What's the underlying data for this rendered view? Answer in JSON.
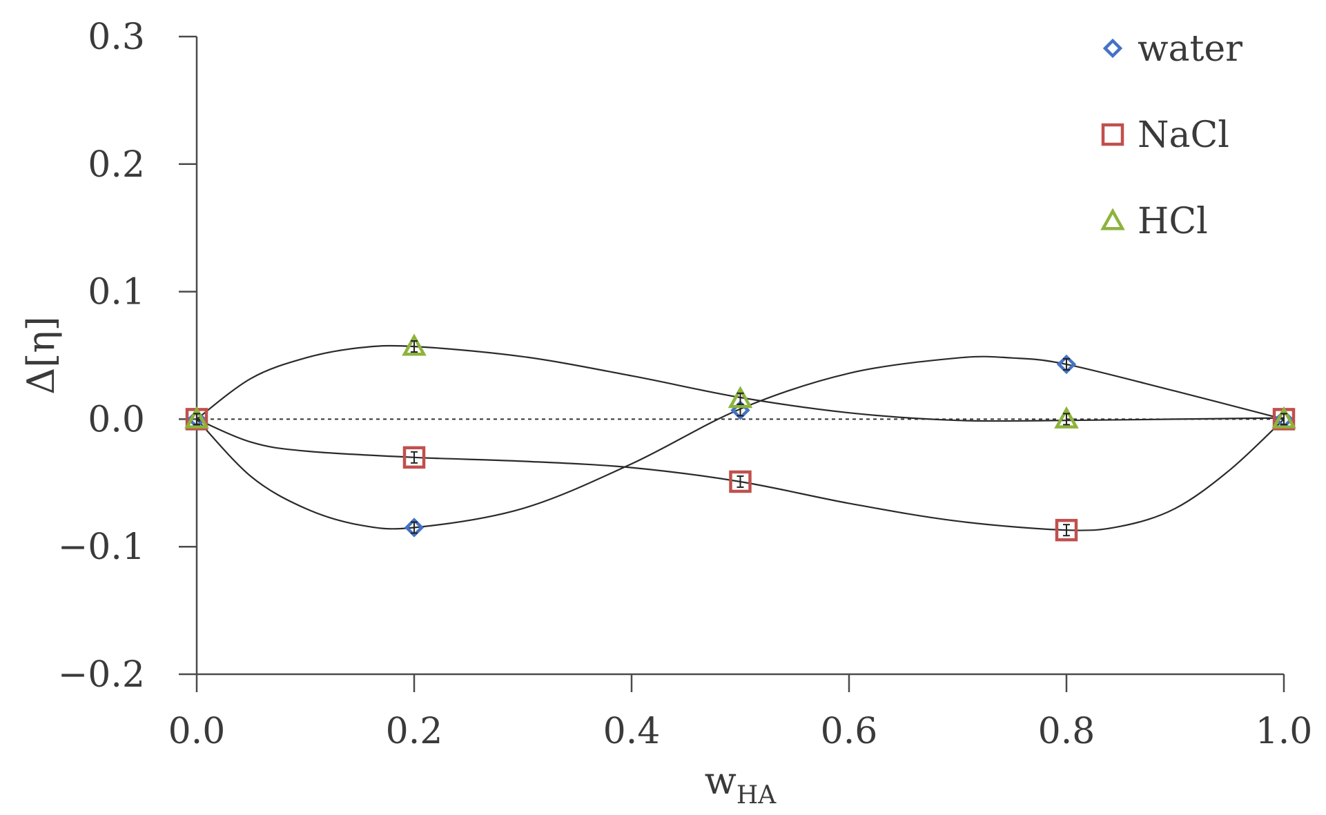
{
  "chart_data": {
    "type": "scatter",
    "title": "",
    "xlabel_main": "w",
    "xlabel_sub": "HA",
    "ylabel": "Δ[η]",
    "xlim": [
      0,
      1
    ],
    "ylim": [
      -0.2,
      0.3
    ],
    "x_ticks": [
      "0.0",
      "0.2",
      "0.4",
      "0.6",
      "0.8",
      "1.0"
    ],
    "y_ticks": [
      "0.3",
      "0.2",
      "0.1",
      "0.0",
      "−0.1",
      "−0.2"
    ],
    "x_tick_values": [
      0,
      0.2,
      0.4,
      0.6,
      0.8,
      1.0
    ],
    "y_tick_values": [
      0.3,
      0.2,
      0.1,
      0.0,
      -0.1,
      -0.2
    ],
    "reference_line": 0,
    "legend_position": "top-right",
    "series": [
      {
        "name": "water",
        "marker": "diamond",
        "color": "#4472C4",
        "x": [
          0.0,
          0.2,
          0.5,
          0.8,
          1.0
        ],
        "y": [
          0.0,
          -0.085,
          0.007,
          0.043,
          0.0
        ],
        "fit_x": [
          0.0,
          0.05,
          0.1,
          0.15,
          0.2,
          0.3,
          0.4,
          0.5,
          0.6,
          0.7,
          0.75,
          0.8,
          0.9,
          1.0
        ],
        "fit_y": [
          0.0,
          -0.045,
          -0.07,
          -0.083,
          -0.085,
          -0.07,
          -0.035,
          0.008,
          0.036,
          0.048,
          0.048,
          0.043,
          0.022,
          0.0
        ]
      },
      {
        "name": "NaCl",
        "marker": "square",
        "color": "#C0504D",
        "x": [
          0.0,
          0.2,
          0.5,
          0.8,
          1.0
        ],
        "y": [
          0.0,
          -0.03,
          -0.049,
          -0.087,
          0.0
        ],
        "fit_x": [
          0.0,
          0.05,
          0.1,
          0.2,
          0.3,
          0.4,
          0.5,
          0.6,
          0.7,
          0.8,
          0.85,
          0.9,
          0.95,
          1.0
        ],
        "fit_y": [
          0.0,
          -0.018,
          -0.025,
          -0.03,
          -0.033,
          -0.038,
          -0.049,
          -0.066,
          -0.08,
          -0.087,
          -0.084,
          -0.07,
          -0.04,
          0.0
        ]
      },
      {
        "name": "HCl",
        "marker": "triangle",
        "color": "#8DB33D",
        "x": [
          0.0,
          0.2,
          0.5,
          0.8,
          1.0
        ],
        "y": [
          0.0,
          0.057,
          0.016,
          0.0,
          0.0
        ],
        "fit_x": [
          0.0,
          0.05,
          0.1,
          0.15,
          0.2,
          0.3,
          0.4,
          0.5,
          0.6,
          0.7,
          0.8,
          0.9,
          1.0
        ],
        "fit_y": [
          0.0,
          0.032,
          0.048,
          0.056,
          0.057,
          0.049,
          0.034,
          0.017,
          0.005,
          -0.001,
          -0.001,
          0.0,
          0.001
        ]
      }
    ]
  }
}
